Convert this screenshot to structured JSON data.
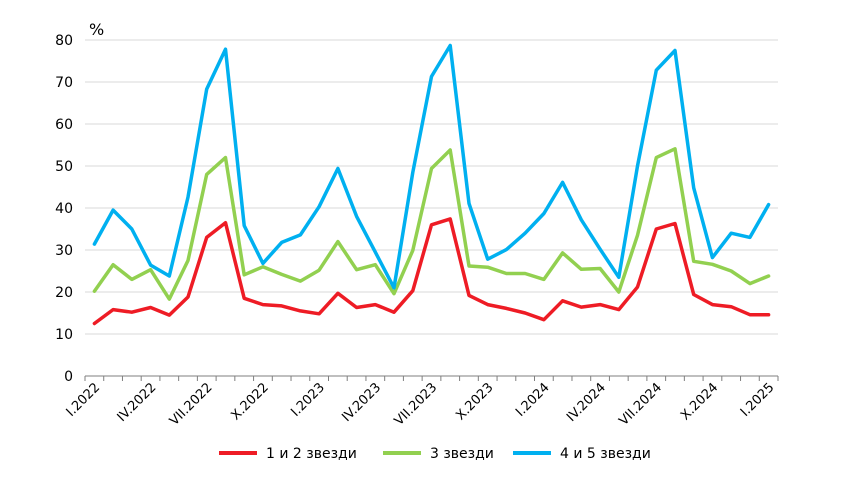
{
  "chart_data": {
    "type": "line",
    "title": "",
    "ylabel": "%",
    "xlabel": "",
    "ylim": [
      0,
      80
    ],
    "yticks": [
      0,
      10,
      20,
      30,
      40,
      50,
      60,
      70,
      80
    ],
    "grid": true,
    "legend_position": "bottom",
    "categories": [
      "I.2022",
      "II.2022",
      "III.2022",
      "IV.2022",
      "V.2022",
      "VI.2022",
      "VII.2022",
      "VIII.2022",
      "IX.2022",
      "X.2022",
      "XI.2022",
      "XII.2022",
      "I.2023",
      "II.2023",
      "III.2023",
      "IV.2023",
      "V.2023",
      "VI.2023",
      "VII.2023",
      "VIII.2023",
      "IX.2023",
      "X.2023",
      "XI.2023",
      "XII.2023",
      "I.2024",
      "II.2024",
      "III.2024",
      "IV.2024",
      "V.2024",
      "VI.2024",
      "VII.2024",
      "VIII.2024",
      "IX.2024",
      "X.2024",
      "XI.2024",
      "XII.2024",
      "I.2025"
    ],
    "tick_labels": [
      "I.2022",
      "IV.2022",
      "VII.2022",
      "X.2022",
      "I.2023",
      "IV.2023",
      "VII.2023",
      "X.2023",
      "I.2024",
      "IV.2024",
      "VII.2024",
      "X.2024",
      "I.2025"
    ],
    "series": [
      {
        "name": "1 и 2 звезди",
        "color": "#ee1c25",
        "values": [
          12.5,
          15.8,
          15.2,
          16.3,
          14.5,
          18.8,
          33,
          36.5,
          18.5,
          17,
          16.7,
          15.5,
          14.8,
          19.7,
          16.3,
          17,
          15.2,
          20.3,
          36,
          37.4,
          19.2,
          17,
          16.1,
          15,
          13.4,
          17.9,
          16.4,
          17,
          15.8,
          21.2,
          35,
          36.3,
          19.4,
          17,
          16.5,
          14.6,
          14.6
        ]
      },
      {
        "name": "3 звезди",
        "color": "#92d050",
        "values": [
          20.2,
          26.5,
          23,
          25.3,
          18.3,
          27.5,
          48,
          52,
          24.1,
          26,
          24.2,
          22.6,
          25.2,
          32,
          25.3,
          26.5,
          19.6,
          29.9,
          49.4,
          53.8,
          26.2,
          25.9,
          24.4,
          24.4,
          23,
          29.3,
          25.4,
          25.6,
          20,
          33.5,
          52,
          54.1,
          27.3,
          26.6,
          25,
          22,
          23.8
        ]
      },
      {
        "name": "4 и 5 звезди",
        "color": "#00b0f0",
        "values": [
          31.4,
          39.5,
          35,
          26.4,
          23.8,
          42.6,
          68.3,
          77.8,
          35.8,
          26.8,
          31.8,
          33.6,
          40.3,
          49.4,
          38,
          29.5,
          21,
          48.5,
          71.3,
          78.7,
          41.1,
          27.8,
          30.1,
          34,
          38.7,
          46.1,
          37.2,
          30.2,
          23.5,
          50,
          72.8,
          77.5,
          44.8,
          28.2,
          34,
          33,
          40.8
        ]
      }
    ]
  }
}
